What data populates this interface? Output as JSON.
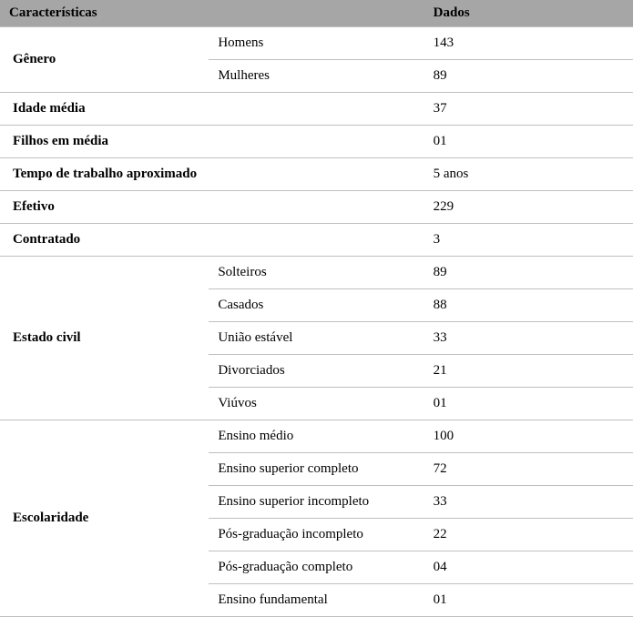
{
  "table": {
    "columns": [
      "Características",
      "",
      "Dados"
    ],
    "header_bg": "#a6a6a6",
    "border_color": "#bfbfbf",
    "font_family": "Times New Roman",
    "groups": [
      {
        "label": "Gênero",
        "rows": [
          {
            "sub": "Homens",
            "value": "143"
          },
          {
            "sub": "Mulheres",
            "value": "89"
          }
        ]
      },
      {
        "label": "Idade média",
        "rows": [
          {
            "sub": "",
            "value": "37"
          }
        ]
      },
      {
        "label": "Filhos em média",
        "rows": [
          {
            "sub": "",
            "value": "01"
          }
        ]
      },
      {
        "label": "Tempo de trabalho aproximado",
        "rows": [
          {
            "sub": "",
            "value": "5 anos"
          }
        ]
      },
      {
        "label": "Efetivo",
        "rows": [
          {
            "sub": "",
            "value": "229"
          }
        ]
      },
      {
        "label": "Contratado",
        "rows": [
          {
            "sub": "",
            "value": "3"
          }
        ]
      },
      {
        "label": "Estado civil",
        "rows": [
          {
            "sub": "Solteiros",
            "value": "89"
          },
          {
            "sub": "Casados",
            "value": "88"
          },
          {
            "sub": "União estável",
            "value": "33"
          },
          {
            "sub": "Divorciados",
            "value": "21"
          },
          {
            "sub": "Viúvos",
            "value": "01"
          }
        ]
      },
      {
        "label": "Escolaridade",
        "rows": [
          {
            "sub": "Ensino médio",
            "value": "100"
          },
          {
            "sub": "Ensino superior completo",
            "value": "72"
          },
          {
            "sub": "Ensino superior incompleto",
            "value": "33"
          },
          {
            "sub": "Pós-graduação incompleto",
            "value": "22"
          },
          {
            "sub": "Pós-graduação completo",
            "value": "04"
          },
          {
            "sub": "Ensino fundamental",
            "value": "01"
          }
        ]
      }
    ]
  }
}
